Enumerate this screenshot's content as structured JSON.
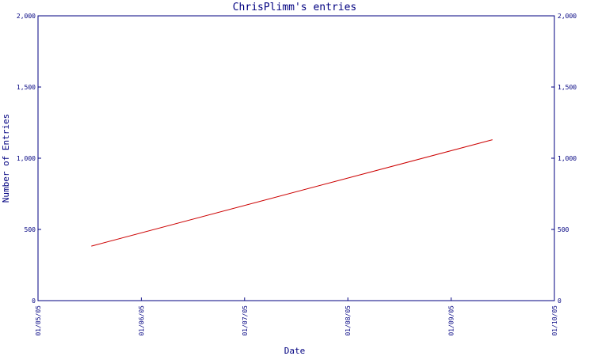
{
  "chart_data": {
    "type": "line",
    "title": "ChrisPlimm's entries",
    "xlabel": "Date",
    "ylabel": "Number of Entries",
    "x_ticks": [
      "01/05/05",
      "01/06/05",
      "01/07/05",
      "01/08/05",
      "01/09/05",
      "01/10/05"
    ],
    "y_ticks": [
      "0",
      "500",
      "1,000",
      "1,500",
      "2,000"
    ],
    "y_tick_values": [
      0,
      500,
      1000,
      1500,
      2000
    ],
    "ylim": [
      0,
      2000
    ],
    "y_axis_right": true,
    "grid": false,
    "series": [
      {
        "color": "#cc0000",
        "points": [
          {
            "x": "2005-05-17",
            "y": 383
          },
          {
            "x": "2005-09-13",
            "y": 1130
          }
        ]
      }
    ],
    "colors": {
      "axis": "#000080",
      "text": "#000080",
      "line": "#cc0000"
    }
  }
}
